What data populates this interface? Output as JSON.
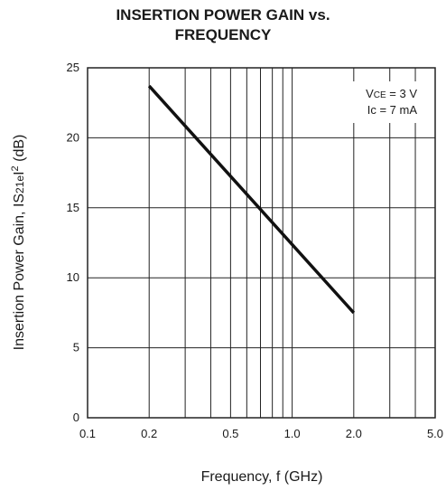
{
  "chart_data": {
    "type": "line",
    "title_line1": "INSERTION POWER GAIN vs.",
    "title_line2": "FREQUENCY",
    "xlabel": "Frequency, f (GHz)",
    "ylabel_main": "Insertion Power Gain, IS",
    "ylabel_sub": "21e",
    "ylabel_mid": "I",
    "ylabel_sup": "2",
    "ylabel_unit": " (dB)",
    "x_scale": "log",
    "xlim": [
      0.1,
      5.0
    ],
    "ylim": [
      0,
      25
    ],
    "x_ticks": [
      0.1,
      0.2,
      0.5,
      1.0,
      2.0,
      5.0
    ],
    "x_tick_labels": [
      "0.1",
      "0.2",
      "0.5",
      "1.0",
      "2.0",
      "5.0"
    ],
    "y_ticks": [
      0,
      5,
      10,
      15,
      20,
      25
    ],
    "y_tick_labels": [
      "0",
      "5",
      "10",
      "15",
      "20",
      "25"
    ],
    "x_gridlines": [
      0.2,
      0.3,
      0.4,
      0.5,
      0.6,
      0.7,
      0.8,
      0.9,
      1.0,
      2.0,
      3.0,
      4.0
    ],
    "y_gridlines": [
      5,
      10,
      15,
      20
    ],
    "grid": true,
    "annotation": {
      "line1_main": "V",
      "line1_sub": "CE",
      "line1_rest": " = 3 V",
      "line2_main": "Ic",
      "line2_rest": " = 7 mA",
      "placement": "top-right"
    },
    "series": [
      {
        "x": [
          0.2,
          2.0
        ],
        "y": [
          23.7,
          7.5
        ]
      }
    ]
  }
}
